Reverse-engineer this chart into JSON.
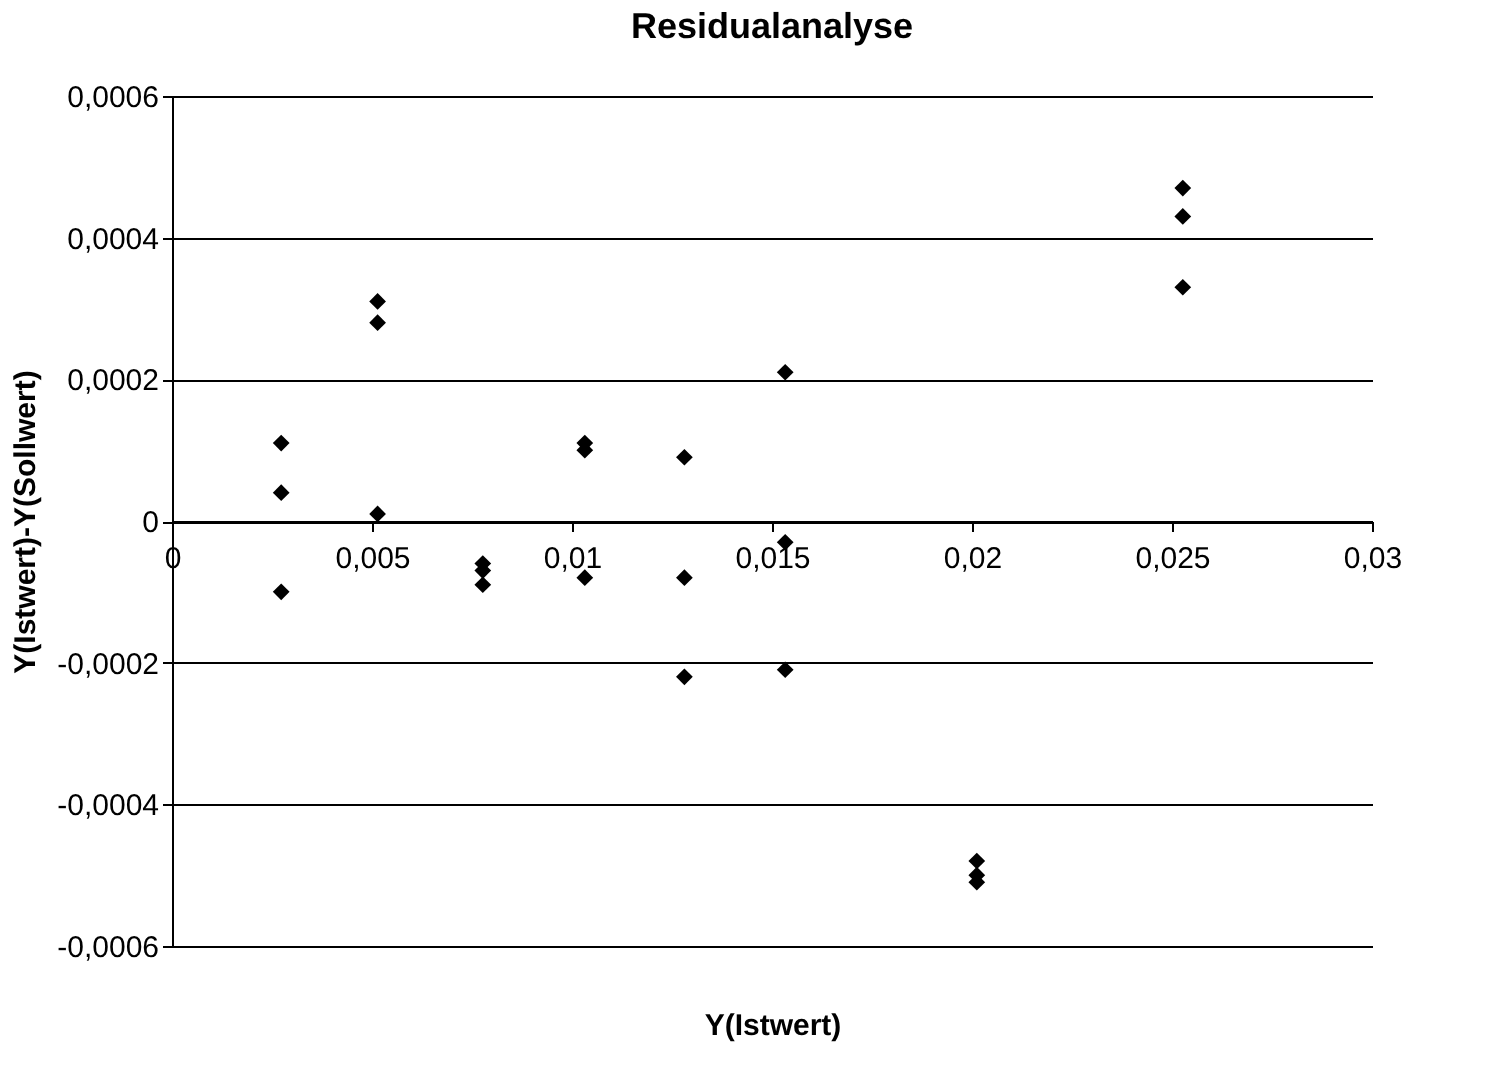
{
  "chart_data": {
    "type": "scatter",
    "title": "Residualanalyse",
    "xlabel": "Y(Istwert)",
    "ylabel": "Y(Istwert)-Y(Sollwert)",
    "x": [
      0.00273,
      0.00273,
      0.00273,
      0.00514,
      0.00514,
      0.00514,
      0.00777,
      0.00777,
      0.00777,
      0.01032,
      0.01032,
      0.01032,
      0.01281,
      0.01281,
      0.01281,
      0.01533,
      0.01533,
      0.01533,
      0.02012,
      0.02012,
      0.02012,
      0.02527,
      0.02527,
      0.02527
    ],
    "series": [
      {
        "color": "#000000",
        "values": [
          0.00011,
          4e-05,
          -0.0001,
          0.00031,
          0.00028,
          1e-05,
          -6e-05,
          -7e-05,
          -9e-05,
          0.00011,
          0.0001,
          -8e-05,
          9e-05,
          -8e-05,
          -0.00022,
          0.00021,
          -3e-05,
          -0.00021,
          -0.00048,
          -0.0005,
          -0.00051,
          0.00047,
          0.00043,
          0.00033
        ]
      }
    ],
    "xlim": [
      0,
      0.03
    ],
    "xticks": [
      0,
      {
        "value": 0.005,
        "label": "0,005"
      },
      {
        "value": 0.01,
        "label": "0,01"
      },
      {
        "value": 0.015,
        "label": "0,015"
      },
      {
        "value": 0.02,
        "label": "0,02"
      },
      {
        "value": 0.025,
        "label": "0,025"
      },
      {
        "value": 0.03,
        "label": "0,03"
      }
    ],
    "ylim": [
      -0.0006,
      0.0006
    ],
    "yticks": [
      {
        "value": -0.0006,
        "label": "-0,0006"
      },
      {
        "value": -0.0004,
        "label": "-0,0004"
      },
      {
        "value": -0.0002,
        "label": "-0,0002"
      },
      0,
      {
        "value": 0.0002,
        "label": "0,0002"
      },
      {
        "value": 0.0004,
        "label": "0,0004"
      },
      {
        "value": 0.0006,
        "label": "0,0006"
      }
    ],
    "grid": "y",
    "marker": "diamond",
    "legend": false
  }
}
